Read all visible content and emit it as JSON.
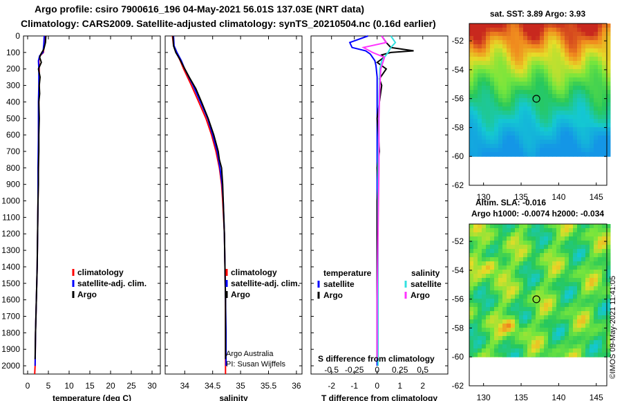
{
  "header": {
    "line1": "Argo profile: csiro 7900616_196 04-May-2021 56.01S 137.03E (NRT data)",
    "line2": "Climatology: CARS2009. Satellite-adjusted climatology: synTS_20210504.nc (0.16d earlier)"
  },
  "colors": {
    "climatology": "#ff0000",
    "satellite": "#0000ff",
    "argo": "#000000",
    "sat_salinity": "#33e0e0",
    "argo_salinity": "#ff33ff"
  },
  "depth_axis": {
    "min": 0,
    "max": 2050,
    "ticks": [
      0,
      100,
      200,
      300,
      400,
      500,
      600,
      700,
      800,
      900,
      1000,
      1100,
      1200,
      1300,
      1400,
      1500,
      1600,
      1700,
      1800,
      1900,
      2000
    ],
    "tick_labels": [
      "0",
      "100",
      "200",
      "300",
      "400",
      "500",
      "600",
      "700",
      "800",
      "900",
      "1000",
      "1100",
      "1200",
      "1300",
      "1400",
      "1500",
      "1600",
      "1700",
      "1800",
      "1900",
      "2000"
    ]
  },
  "chart_data": [
    {
      "type": "line",
      "id": "temperature",
      "xlabel": "temperature (deg C)",
      "xlim": [
        -1,
        32
      ],
      "x_ticks": [
        0,
        5,
        10,
        15,
        20,
        25,
        30
      ],
      "x_tick_labels": [
        "0",
        "5",
        "10",
        "15",
        "20",
        "25",
        "30"
      ],
      "legend": [
        "climatology",
        "satellite-adj. clim.",
        "Argo"
      ],
      "series": [
        {
          "name": "climatology",
          "depth": [
            0,
            50,
            100,
            120,
            150,
            200,
            300,
            400,
            600,
            800,
            1000,
            1200,
            1400,
            1600,
            1800,
            2000,
            2050
          ],
          "values": [
            4.1,
            4.0,
            3.8,
            3.0,
            2.7,
            2.8,
            2.8,
            2.7,
            2.6,
            2.6,
            2.5,
            2.4,
            2.3,
            2.1,
            1.9,
            1.8,
            1.7
          ]
        },
        {
          "name": "satellite-adj. clim.",
          "depth": [
            0,
            50,
            100,
            120,
            150,
            200,
            300,
            400,
            600,
            800,
            1000,
            1200,
            1400,
            1600,
            1800,
            2000
          ],
          "values": [
            4.0,
            3.9,
            3.7,
            2.9,
            2.6,
            2.7,
            2.7,
            2.6,
            2.6,
            2.5,
            2.5,
            2.4,
            2.3,
            2.1,
            1.9,
            1.8
          ]
        },
        {
          "name": "Argo",
          "depth": [
            0,
            40,
            80,
            110,
            130,
            160,
            200,
            250,
            300,
            350,
            400,
            500,
            600,
            700,
            800,
            900,
            1000,
            1200,
            1400,
            1600,
            1800,
            1960
          ],
          "values": [
            4.4,
            4.3,
            3.9,
            3.2,
            2.9,
            3.3,
            2.6,
            3.0,
            2.8,
            2.9,
            2.7,
            2.8,
            2.7,
            2.7,
            2.6,
            2.6,
            2.5,
            2.4,
            2.3,
            2.1,
            1.9,
            1.8
          ]
        }
      ]
    },
    {
      "type": "line",
      "id": "salinity",
      "xlabel": "salinity",
      "xlim": [
        33.65,
        36.1
      ],
      "x_ticks": [
        34,
        34.5,
        35,
        35.5,
        36
      ],
      "x_tick_labels": [
        "34",
        "34.5",
        "35",
        "35.5",
        "36"
      ],
      "legend": [
        "climatology",
        "satellite-adj. clim.",
        "Argo"
      ],
      "annotation": [
        "Argo Australia",
        "PI: Susan Wijffels"
      ],
      "series": [
        {
          "name": "climatology",
          "depth": [
            0,
            60,
            100,
            150,
            200,
            300,
            400,
            500,
            600,
            700,
            800,
            900,
            1000,
            1200,
            1400,
            1600,
            1800,
            2000,
            2050
          ],
          "values": [
            33.78,
            33.8,
            33.85,
            33.92,
            33.98,
            34.12,
            34.25,
            34.38,
            34.48,
            34.56,
            34.62,
            34.66,
            34.68,
            34.71,
            34.72,
            34.73,
            34.73,
            34.73,
            34.73
          ]
        },
        {
          "name": "satellite-adj. clim.",
          "depth": [
            0,
            60,
            100,
            150,
            200,
            300,
            400,
            500,
            600,
            700,
            800,
            900,
            1000,
            1200,
            1400,
            1600,
            1800,
            2000
          ],
          "values": [
            33.8,
            33.81,
            33.86,
            33.94,
            34.0,
            34.15,
            34.28,
            34.41,
            34.5,
            34.58,
            34.63,
            34.67,
            34.69,
            34.71,
            34.72,
            34.73,
            34.74,
            34.74
          ]
        },
        {
          "name": "Argo",
          "depth": [
            0,
            60,
            100,
            140,
            180,
            250,
            320,
            400,
            500,
            600,
            700,
            750,
            800,
            900,
            1000,
            1200,
            1400,
            1600,
            1800,
            1960
          ],
          "values": [
            33.79,
            33.8,
            33.84,
            33.91,
            33.97,
            34.08,
            34.2,
            34.3,
            34.42,
            34.52,
            34.6,
            34.62,
            34.66,
            34.68,
            34.69,
            34.71,
            34.72,
            34.73,
            34.73,
            34.73
          ]
        }
      ]
    },
    {
      "type": "line",
      "id": "difference",
      "xlabel": "T difference from climatology",
      "xlabel2": "S difference from climatology",
      "xlim": [
        -2.9,
        3.1
      ],
      "x_ticks": [
        -2,
        -1,
        0,
        1,
        2
      ],
      "x_tick_labels": [
        "-2",
        "-1",
        "0",
        "1",
        "2"
      ],
      "s_ticks": [
        -0.5,
        -0.25,
        0,
        0.25,
        0.5
      ],
      "s_tick_labels": [
        "-0.5",
        "-0.25",
        "0",
        "0.25",
        "0.5"
      ],
      "legend_temperature_title": "temperature",
      "legend_salinity_title": "salinity",
      "legend_temperature": [
        "satellite",
        "Argo"
      ],
      "legend_salinity": [
        "satellite",
        "Argo"
      ],
      "series": [
        {
          "name": "T satellite",
          "depth": [
            0,
            40,
            70,
            90,
            110,
            130,
            150,
            180,
            250,
            400,
            600,
            800,
            1000,
            1400,
            1800,
            2000
          ],
          "values": [
            -0.4,
            -1.2,
            -1.1,
            -0.5,
            -0.3,
            -0.2,
            -0.1,
            -0.05,
            0,
            0,
            0,
            0,
            0,
            0,
            0,
            0
          ]
        },
        {
          "name": "T Argo",
          "depth": [
            0,
            40,
            70,
            90,
            100,
            115,
            130,
            160,
            200,
            260,
            300,
            400,
            500,
            600,
            700,
            800,
            900,
            1000,
            1400,
            1800,
            1960
          ],
          "values": [
            0.2,
            0.4,
            0.6,
            1.6,
            0.6,
            0.2,
            0.3,
            0.0,
            0.4,
            0.1,
            0.2,
            0.1,
            0.0,
            0.05,
            0.1,
            0.0,
            0.05,
            0.0,
            0.0,
            0.0,
            0.0
          ]
        },
        {
          "name": "S satellite",
          "depth": [
            0,
            40,
            70,
            100,
            150,
            200,
            400,
            800,
            1200,
            1600,
            2000
          ],
          "values": [
            0.15,
            0.2,
            0.15,
            0.12,
            0.05,
            0.03,
            0.02,
            0.01,
            0.01,
            0.01,
            0.01
          ]
        },
        {
          "name": "S Argo",
          "depth": [
            0,
            40,
            70,
            100,
            130,
            200,
            300,
            500,
            800,
            1200,
            1600,
            1960
          ],
          "values": [
            0.05,
            0.1,
            -0.15,
            -0.05,
            0.08,
            0.04,
            0.03,
            0.02,
            0.02,
            0.01,
            0.0,
            0.0
          ]
        }
      ]
    },
    {
      "type": "heatmap",
      "id": "sst_map",
      "title": "sat. SST: 3.89 Argo: 3.93",
      "xlim": [
        128.1,
        146.4
      ],
      "ylim": [
        -62,
        -50.8
      ],
      "x_ticks": [
        130,
        135,
        140,
        145
      ],
      "x_tick_labels": [
        "130",
        "135",
        "140",
        "145"
      ],
      "y_ticks": [
        -52,
        -54,
        -56,
        -58,
        -60,
        -62
      ],
      "y_tick_labels": [
        "-52",
        "-54",
        "-56",
        "-58",
        "-60",
        "-62"
      ],
      "data_ymin": -60,
      "marker": [
        137.03,
        -56.01
      ]
    },
    {
      "type": "heatmap",
      "id": "sla_map",
      "title": "Altim. SLA: -0.016",
      "subtitle": "Argo h1000: -0.0074 h2000: -0.034",
      "xlim": [
        128.1,
        146.4
      ],
      "ylim": [
        -62,
        -50.8
      ],
      "x_ticks": [
        130,
        135,
        140,
        145
      ],
      "x_tick_labels": [
        "130",
        "135",
        "140",
        "145"
      ],
      "y_ticks": [
        -52,
        -54,
        -56,
        -58,
        -60,
        -62
      ],
      "y_tick_labels": [
        "-52",
        "-54",
        "-56",
        "-58",
        "-60",
        "-62"
      ],
      "data_ymin": -60,
      "marker": [
        137.03,
        -56.01
      ]
    }
  ],
  "footer": "©IMOS 09-May-2021 11:41:05"
}
